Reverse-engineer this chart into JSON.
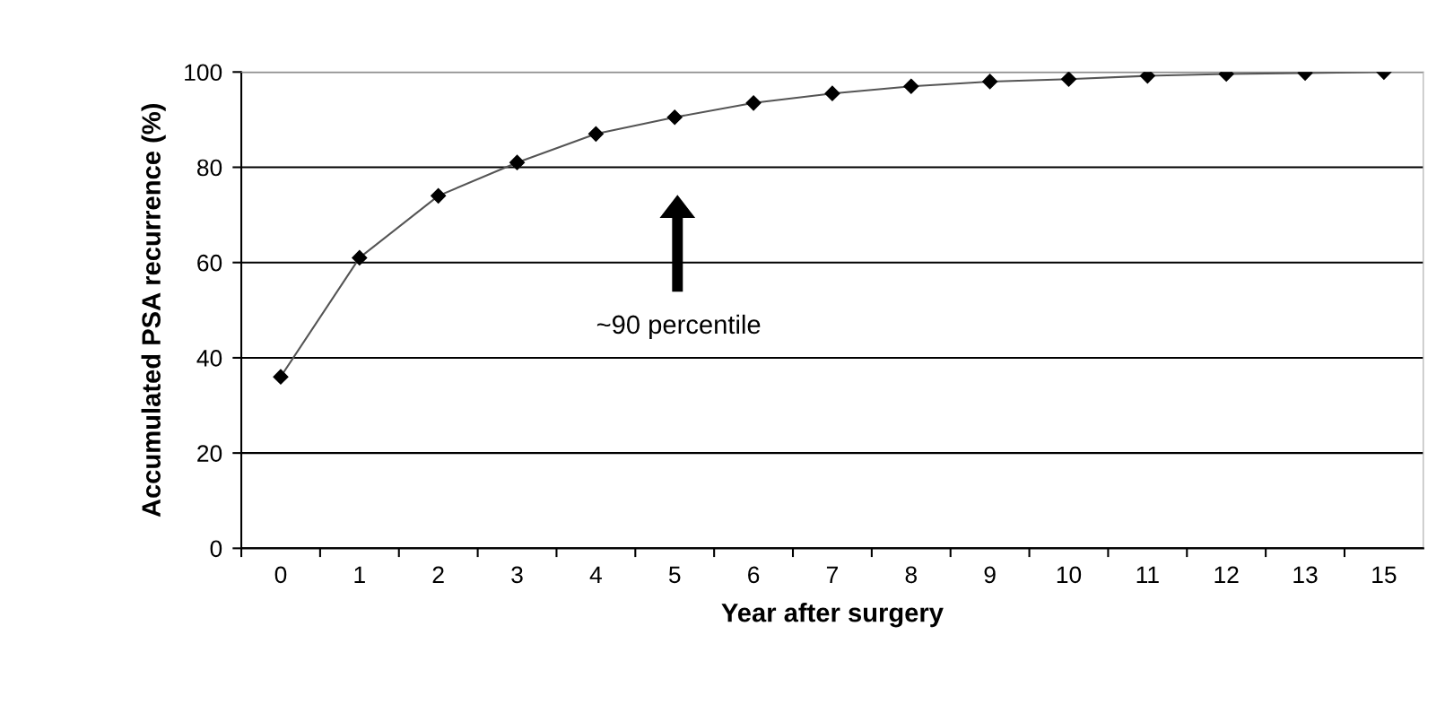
{
  "chart_data": {
    "type": "line",
    "xlabel": "Year after surgery",
    "ylabel": "Accumulated PSA recurrence (%)",
    "categories": [
      "0",
      "1",
      "2",
      "3",
      "4",
      "5",
      "6",
      "7",
      "8",
      "9",
      "10",
      "11",
      "12",
      "13",
      "15"
    ],
    "series": [
      {
        "color": "#000000",
        "values": [
          36,
          61,
          74,
          81,
          87,
          90.5,
          93.5,
          95.5,
          97,
          98,
          98.5,
          99.2,
          99.6,
          99.8,
          100
        ]
      }
    ],
    "ylim": [
      0,
      100
    ],
    "yticks": [
      0,
      20,
      40,
      60,
      80,
      100
    ],
    "grid": "y",
    "marker": "diamond",
    "line_style": "solid",
    "annotations": [
      "~90 percentile"
    ]
  }
}
